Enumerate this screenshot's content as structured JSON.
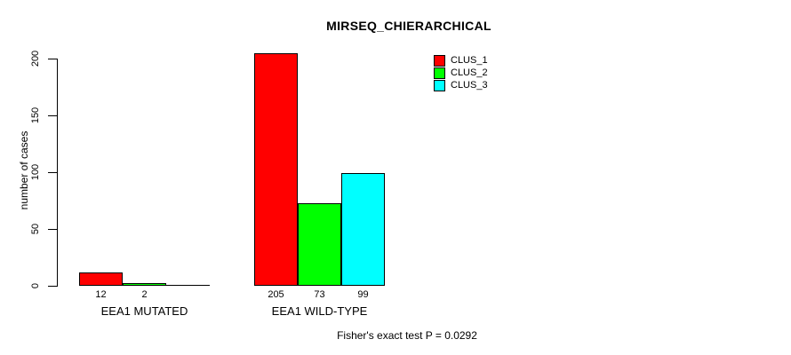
{
  "chart_data": {
    "type": "bar",
    "title": "MIRSEQ_CHIERARCHICAL",
    "ylabel": "number of cases",
    "xlabel": "",
    "footnote": "Fisher's exact test P = 0.0292",
    "categories": [
      "EEA1 MUTATED",
      "EEA1 WILD-TYPE"
    ],
    "series": [
      {
        "name": "CLUS_1",
        "color": "#FF0000",
        "values": [
          12,
          205
        ]
      },
      {
        "name": "CLUS_2",
        "color": "#00FF00",
        "values": [
          2,
          73
        ]
      },
      {
        "name": "CLUS_3",
        "color": "#00FFFF",
        "values": [
          0,
          99
        ]
      }
    ],
    "bar_value_labels": [
      [
        "12",
        "2",
        ""
      ],
      [
        "205",
        "73",
        "99"
      ]
    ],
    "y_ticks": [
      0,
      50,
      100,
      150,
      200
    ],
    "ylim": [
      0,
      205
    ],
    "grid": false,
    "legend": {
      "position": "top-right",
      "entries": [
        "CLUS_1",
        "CLUS_2",
        "CLUS_3"
      ]
    }
  }
}
